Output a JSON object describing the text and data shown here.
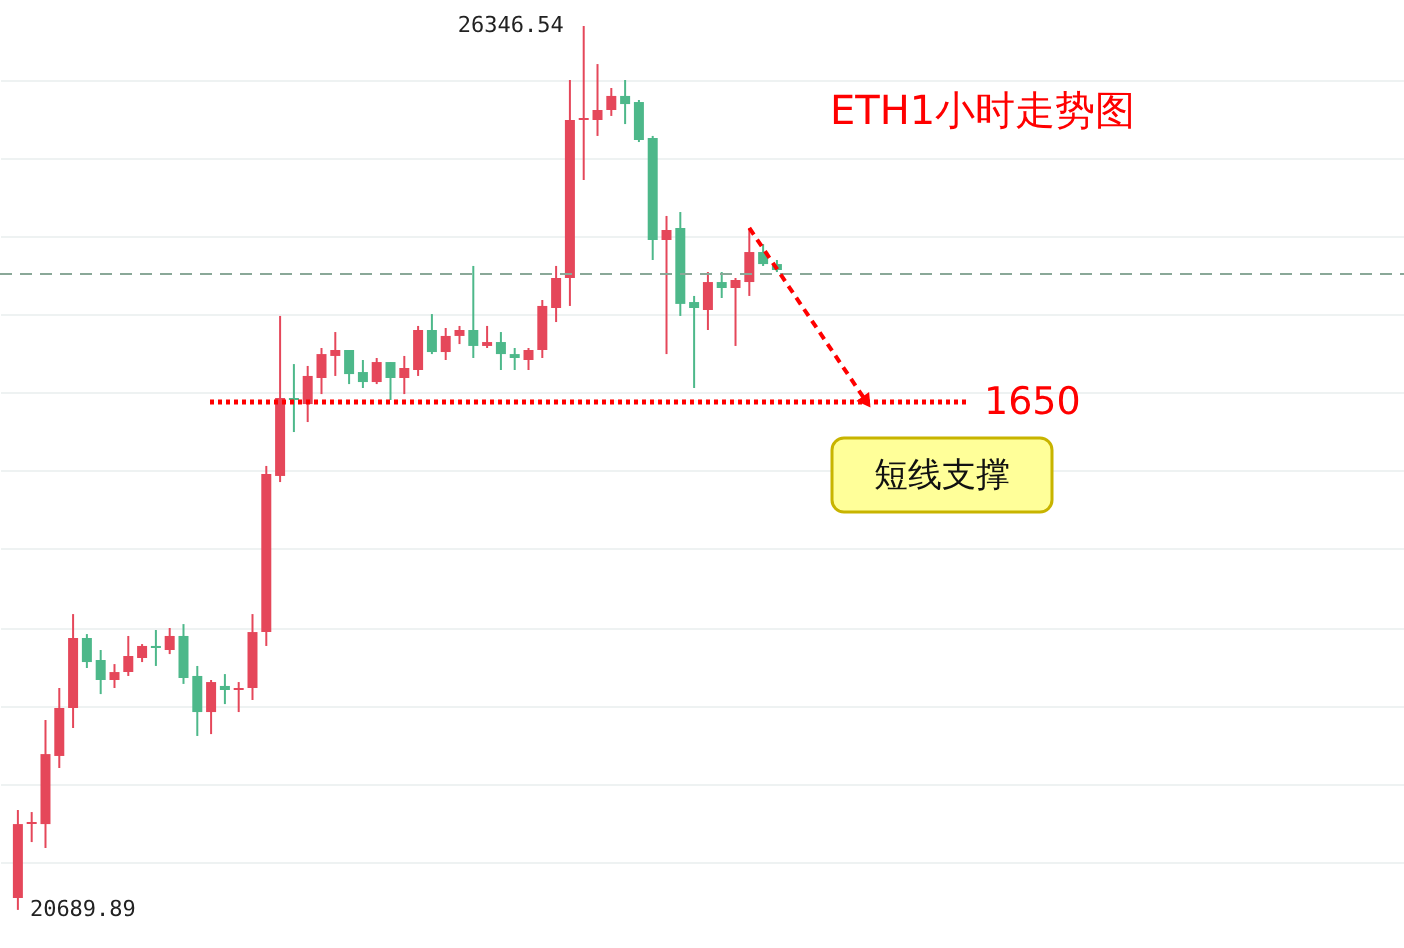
{
  "chart_data": {
    "type": "candlestick",
    "title": "ETH1小时走势图",
    "categories": [
      null,
      null,
      null,
      null,
      null,
      null,
      null,
      null,
      null,
      null,
      null,
      null,
      null,
      null,
      null,
      null,
      null,
      null,
      null,
      null,
      null,
      null,
      null,
      null,
      null,
      null,
      null,
      null,
      null,
      null,
      null,
      null,
      null,
      null,
      null,
      null,
      null,
      null,
      null,
      null,
      null,
      null,
      null,
      null,
      null,
      null,
      null,
      null,
      null,
      null,
      null,
      null,
      null,
      null,
      null,
      null
    ],
    "ohlc": [
      [
        20766,
        21329,
        20689.89,
        21239
      ],
      [
        21239,
        21316,
        21124,
        21252
      ],
      [
        21239,
        21905,
        21086,
        21687
      ],
      [
        21675,
        22110,
        21598,
        21982
      ],
      [
        21982,
        22583,
        21854,
        22430
      ],
      [
        22430,
        22455,
        22238,
        22276
      ],
      [
        22289,
        22353,
        22071,
        22161
      ],
      [
        22161,
        22263,
        22110,
        22212
      ],
      [
        22212,
        22443,
        22187,
        22315
      ],
      [
        22302,
        22391,
        22276,
        22379
      ],
      [
        22379,
        22481,
        22251,
        22366
      ],
      [
        22353,
        22494,
        22327,
        22443
      ],
      [
        22443,
        22519,
        22136,
        22174
      ],
      [
        22187,
        22251,
        21803,
        21956
      ],
      [
        21956,
        22161,
        21815,
        22148
      ],
      [
        22123,
        22199,
        22007,
        22097
      ],
      [
        22097,
        22148,
        21956,
        22110
      ],
      [
        22110,
        22583,
        22033,
        22468
      ],
      [
        22468,
        23531,
        22379,
        23480
      ],
      [
        23467,
        24491,
        23428,
        23966
      ],
      [
        23966,
        24183,
        23748,
        23953
      ],
      [
        23927,
        24171,
        23812,
        24107
      ],
      [
        24094,
        24286,
        23991,
        24247
      ],
      [
        24235,
        24388,
        24107,
        24273
      ],
      [
        24273,
        24273,
        24055,
        24119
      ],
      [
        24132,
        24209,
        24030,
        24068
      ],
      [
        24068,
        24222,
        24055,
        24196
      ],
      [
        24196,
        24196,
        23953,
        24094
      ],
      [
        24094,
        24235,
        23991,
        24158
      ],
      [
        24145,
        24427,
        24107,
        24401
      ],
      [
        24401,
        24503,
        24247,
        24260
      ],
      [
        24260,
        24414,
        24209,
        24363
      ],
      [
        24363,
        24427,
        24311,
        24401
      ],
      [
        24401,
        24811,
        24222,
        24299
      ],
      [
        24299,
        24427,
        24286,
        24324
      ],
      [
        24324,
        24388,
        24145,
        24247
      ],
      [
        24247,
        24286,
        24145,
        24222
      ],
      [
        24209,
        24286,
        24145,
        24273
      ],
      [
        24273,
        24593,
        24222,
        24555
      ],
      [
        24542,
        24811,
        24452,
        24734
      ],
      [
        24734,
        26001,
        24555,
        25745
      ],
      [
        25745,
        26346.54,
        25361,
        25758
      ],
      [
        25745,
        26103,
        25643,
        25809
      ],
      [
        25809,
        25950,
        25771,
        25899
      ],
      [
        25899,
        26001,
        25719,
        25847
      ],
      [
        25860,
        25873,
        25604,
        25617
      ],
      [
        25630,
        25643,
        24849,
        24977
      ],
      [
        24977,
        25131,
        24247,
        25041
      ],
      [
        25054,
        25156,
        24491,
        24568
      ],
      [
        24580,
        24619,
        24030,
        24542
      ],
      [
        24529,
        24772,
        24401,
        24708
      ],
      [
        24708,
        24772,
        24606,
        24670
      ],
      [
        24670,
        24734,
        24299,
        24721
      ],
      [
        24708,
        25054,
        24619,
        24900
      ],
      [
        24900,
        24951,
        24811,
        24823
      ],
      [
        24823,
        24849,
        24772,
        24785
      ]
    ],
    "colors": [
      "#e5475a",
      "#e5475a",
      "#e5475a",
      "#e5475a",
      "#e5475a",
      "#4db88a",
      "#4db88a",
      "#e5475a",
      "#e5475a",
      "#e5475a",
      "#4db88a",
      "#e5475a",
      "#4db88a",
      "#4db88a",
      "#e5475a",
      "#4db88a",
      "#e5475a",
      "#e5475a",
      "#e5475a",
      "#e5475a",
      "#4db88a",
      "#e5475a",
      "#e5475a",
      "#e5475a",
      "#4db88a",
      "#4db88a",
      "#e5475a",
      "#4db88a",
      "#e5475a",
      "#e5475a",
      "#4db88a",
      "#e5475a",
      "#e5475a",
      "#4db88a",
      "#e5475a",
      "#4db88a",
      "#4db88a",
      "#e5475a",
      "#e5475a",
      "#e5475a",
      "#e5475a",
      "#e5475a",
      "#e5475a",
      "#e5475a",
      "#4db88a",
      "#4db88a",
      "#4db88a",
      "#e5475a",
      "#4db88a",
      "#4db88a",
      "#e5475a",
      "#4db88a",
      "#e5475a",
      "#e5475a",
      "#4db88a",
      "#4db88a"
    ],
    "ylim": [
      20446,
      26513
    ],
    "yticks": [
      {
        "value": 21000,
        "label": null
      },
      {
        "value": 21500,
        "label": null
      },
      {
        "value": 22000,
        "label": null
      },
      {
        "value": 22500,
        "label": null
      },
      {
        "value": 23000,
        "label": null
      },
      {
        "value": 23500,
        "label": null
      },
      {
        "value": 24000,
        "label": null
      },
      {
        "value": 24500,
        "label": null
      },
      {
        "value": 25000,
        "label": null
      },
      {
        "value": 25500,
        "label": null
      },
      {
        "value": 26000,
        "label": null
      }
    ],
    "grid": "y",
    "tick_labels": false,
    "ref_lines": [
      {
        "axis": "y",
        "value": 23940,
        "label": null,
        "color": "#ff0000",
        "line_style": "dotted"
      },
      {
        "axis": "y",
        "value": 24759,
        "label": null,
        "color": "#8aa898",
        "line_style": "dashed"
      }
    ],
    "annotations": [
      "26346.54",
      "20689.89",
      "1650",
      "短线支撑"
    ]
  }
}
